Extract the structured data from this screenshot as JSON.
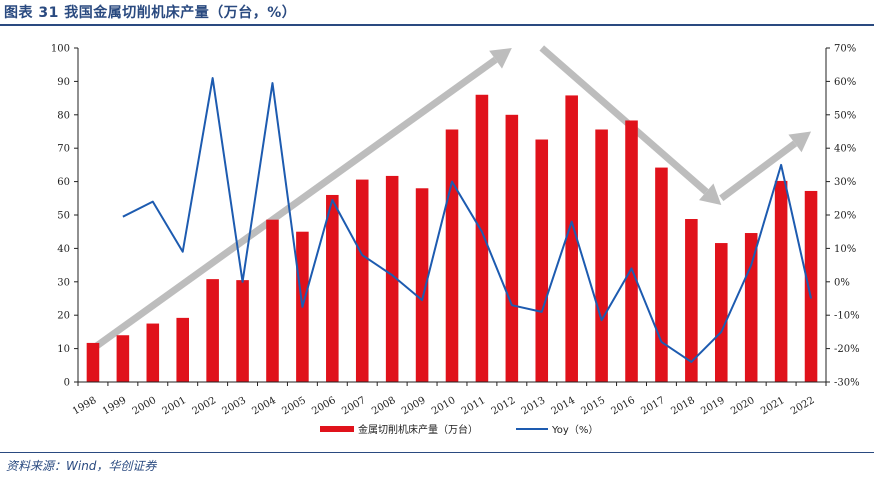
{
  "header": {
    "title": "图表 31   我国金属切削机床产量（万台，%）"
  },
  "footer": {
    "source": "资料来源：Wind，华创证券"
  },
  "chart_data": {
    "type": "bar",
    "categories": [
      "1998",
      "1999",
      "2000",
      "2001",
      "2002",
      "2003",
      "2004",
      "2005",
      "2006",
      "2007",
      "2008",
      "2009",
      "2010",
      "2011",
      "2012",
      "2013",
      "2014",
      "2015",
      "2016",
      "2017",
      "2018",
      "2019",
      "2020",
      "2021",
      "2022"
    ],
    "series": [
      {
        "name": "金属切削机床产量（万台）",
        "type": "bar",
        "axis": "left",
        "color": "#e0121b",
        "values": [
          11.7,
          14.0,
          17.5,
          19.2,
          30.8,
          30.5,
          48.6,
          45.0,
          56.0,
          60.6,
          61.7,
          58.0,
          75.6,
          86.0,
          80.0,
          72.6,
          85.8,
          75.6,
          78.3,
          64.2,
          48.8,
          41.6,
          44.6,
          60.2,
          57.2
        ]
      },
      {
        "name": "Yoy（%）",
        "type": "line",
        "axis": "right",
        "color": "#1d5bb0",
        "values": [
          null,
          19.5,
          24,
          9,
          61,
          0,
          59.5,
          -7.5,
          24.5,
          8,
          2,
          -5.5,
          30,
          15,
          -7,
          -9,
          18,
          -11.5,
          4,
          -18,
          -24,
          -15,
          5,
          35,
          -5
        ]
      }
    ],
    "y_left": {
      "min": 0,
      "max": 100,
      "ticks": [
        "0",
        "10",
        "20",
        "30",
        "40",
        "50",
        "60",
        "70",
        "80",
        "90",
        "100"
      ]
    },
    "y_right": {
      "min": -30,
      "max": 70,
      "ticks": [
        "-30%",
        "-20%",
        "-10%",
        "0%",
        "10%",
        "20%",
        "30%",
        "40%",
        "50%",
        "60%",
        "70%"
      ]
    },
    "grid": false,
    "legend_position": "bottom-center",
    "annotations": [
      {
        "type": "trend-arrow",
        "direction": "up",
        "from": [
          "1998",
          10
        ],
        "to": [
          "2012",
          100
        ],
        "color": "#bdbdbd"
      },
      {
        "type": "trend-arrow",
        "direction": "down",
        "from": [
          "2013",
          100
        ],
        "to": [
          "2019",
          53
        ],
        "color": "#bdbdbd"
      },
      {
        "type": "trend-arrow",
        "direction": "up",
        "from": [
          "2019",
          55
        ],
        "to": [
          "2022",
          75
        ],
        "color": "#bdbdbd"
      }
    ]
  }
}
